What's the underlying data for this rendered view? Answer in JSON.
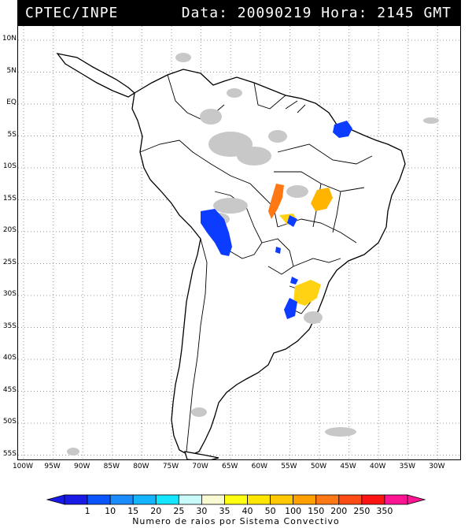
{
  "header": {
    "agency": "CPTEC/INPE",
    "stamp": "Data: 20090219 Hora: 2145 GMT"
  },
  "lat_labels": [
    "10N",
    "5N",
    "EQ",
    "5S",
    "10S",
    "15S",
    "20S",
    "25S",
    "30S",
    "35S",
    "40S",
    "45S",
    "50S",
    "55S"
  ],
  "lon_labels": [
    "100W",
    "95W",
    "90W",
    "85W",
    "80W",
    "75W",
    "70W",
    "65W",
    "60W",
    "55W",
    "50W",
    "45W",
    "40W",
    "35W",
    "30W"
  ],
  "legend": {
    "title": "Numero de raios por Sistema Convectivo",
    "values": [
      "1",
      "10",
      "15",
      "20",
      "25",
      "30",
      "35",
      "40",
      "50",
      "100",
      "150",
      "200",
      "250",
      "350"
    ],
    "colors": [
      "#1a1ae6",
      "#0b55ff",
      "#1a8cff",
      "#14b4ff",
      "#14e6ff",
      "#c8fafa",
      "#fafad2",
      "#ffff14",
      "#ffe600",
      "#ffc800",
      "#ffa000",
      "#ff7814",
      "#ff4b14",
      "#ff1414",
      "#ff1493"
    ]
  },
  "systems_colors": {
    "blue": "#0b3cff",
    "orange": "#ff7814",
    "yellow": "#ffd214",
    "gold": "#ffb400",
    "gray": "#c8c8c8"
  }
}
